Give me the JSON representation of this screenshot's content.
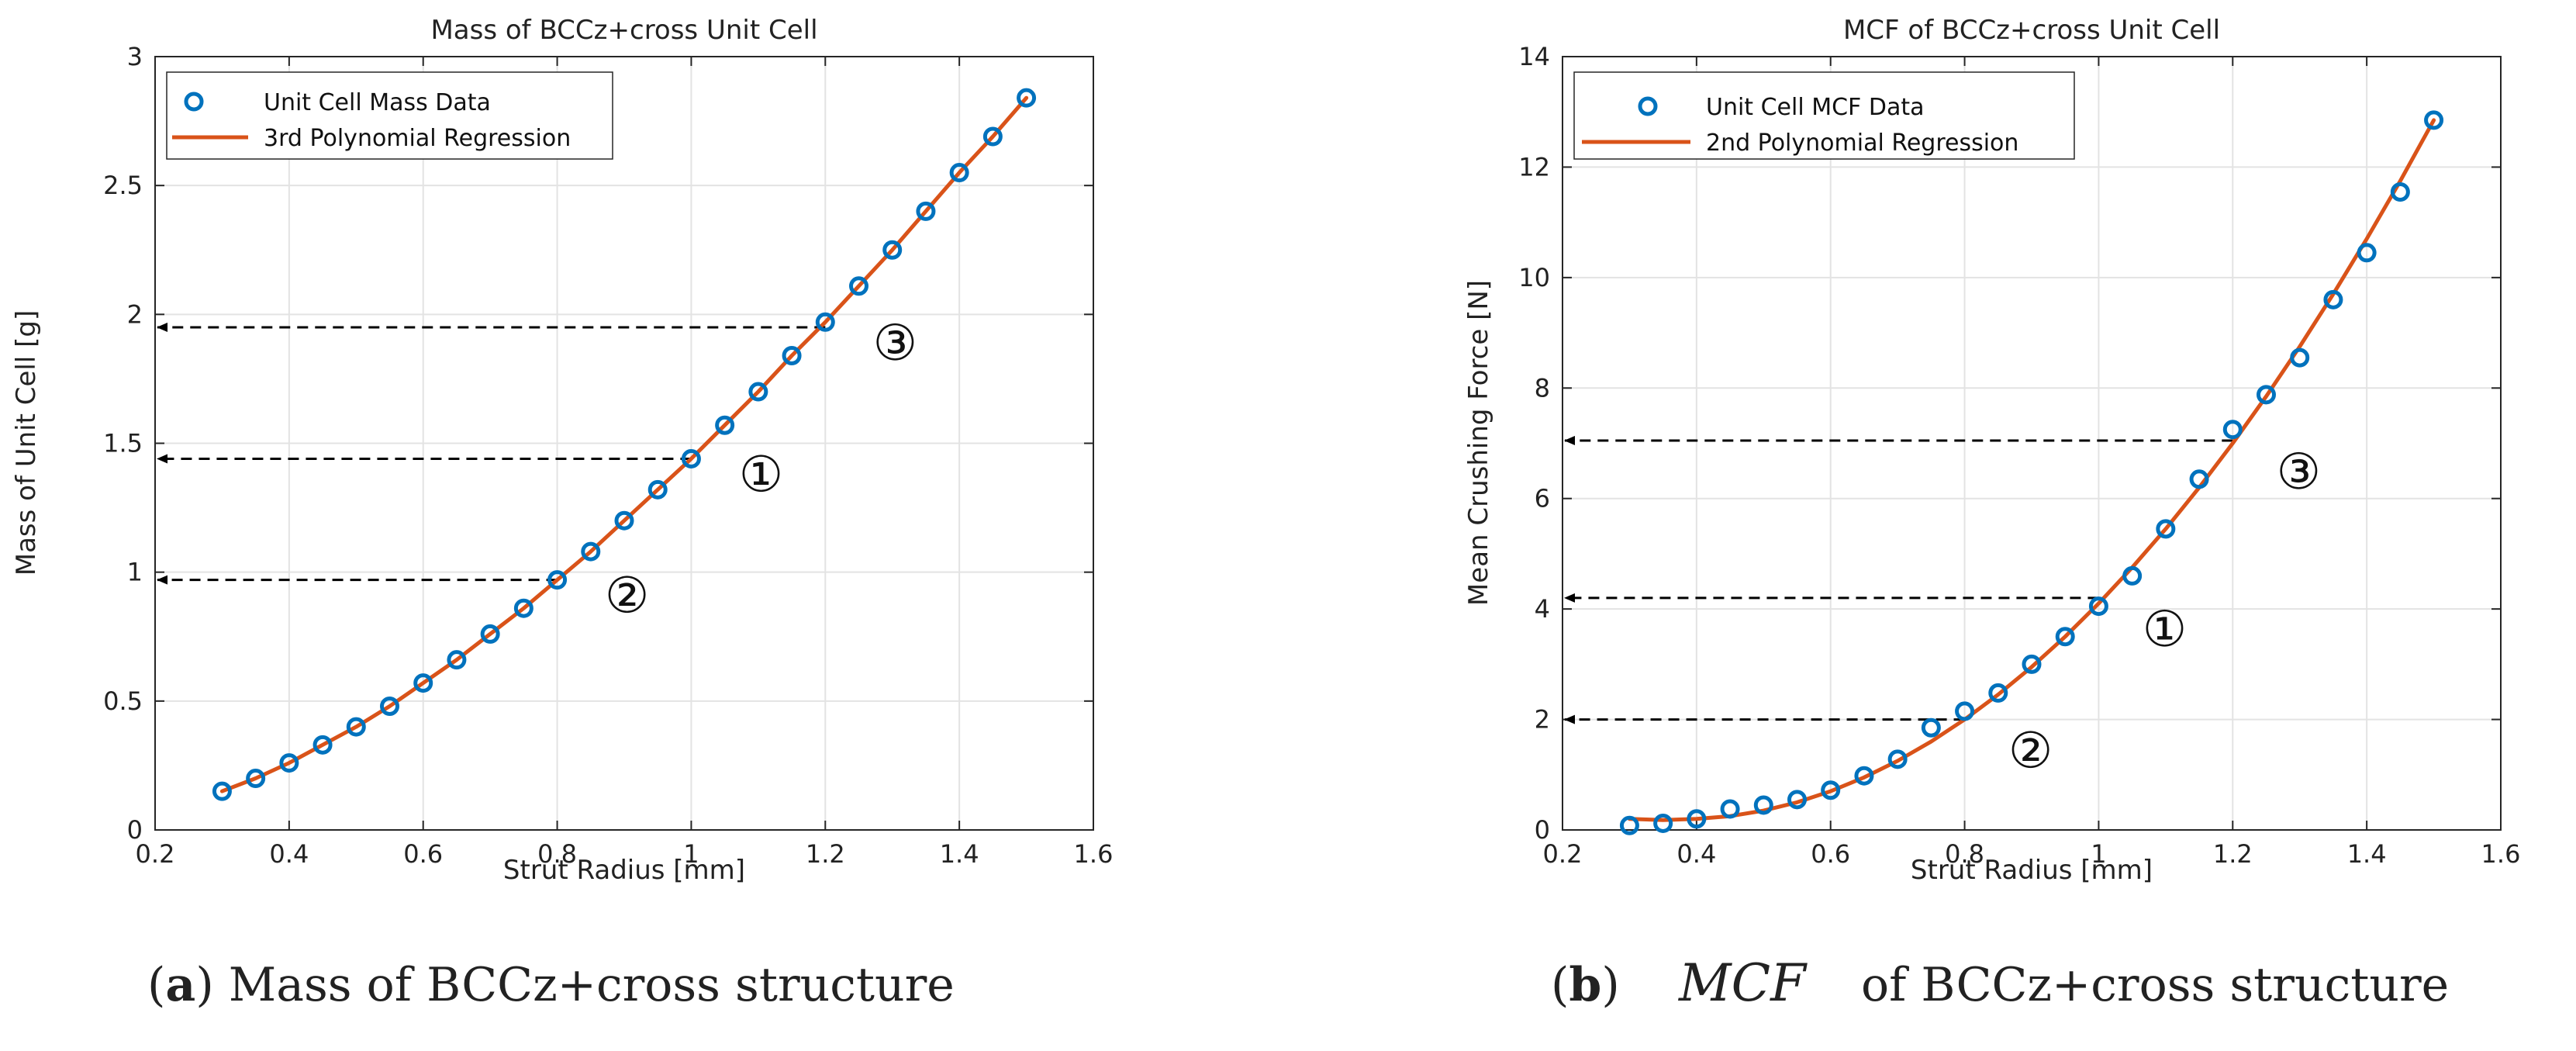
{
  "chart_data": [
    {
      "type": "scatter",
      "title": "Mass of BCCz+cross Unit Cell",
      "xlabel": "Strut Radius [mm]",
      "ylabel": "Mass of Unit Cell [g]",
      "xlim": [
        0.2,
        1.6
      ],
      "ylim": [
        0,
        3
      ],
      "xticks": [
        0.2,
        0.4,
        0.6,
        0.8,
        1,
        1.2,
        1.4,
        1.6
      ],
      "xtick_labels": [
        "0.2",
        "0.4",
        "0.6",
        "0.8",
        "1",
        "1.2",
        "1.4",
        "1.6"
      ],
      "yticks": [
        0,
        0.5,
        1,
        1.5,
        2,
        2.5,
        3
      ],
      "ytick_labels": [
        "0",
        "0.5",
        "1",
        "1.5",
        "2",
        "2.5",
        "3"
      ],
      "grid": true,
      "legend_position": "top-left",
      "series": [
        {
          "name": "Unit Cell Mass Data",
          "kind": "markers",
          "color": "#0072BD",
          "x": [
            0.3,
            0.35,
            0.4,
            0.45,
            0.5,
            0.55,
            0.6,
            0.65,
            0.7,
            0.75,
            0.8,
            0.85,
            0.9,
            0.95,
            1.0,
            1.05,
            1.1,
            1.15,
            1.2,
            1.25,
            1.3,
            1.35,
            1.4,
            1.45,
            1.5
          ],
          "y": [
            0.15,
            0.2,
            0.26,
            0.33,
            0.4,
            0.48,
            0.57,
            0.66,
            0.76,
            0.86,
            0.97,
            1.08,
            1.2,
            1.32,
            1.44,
            1.57,
            1.7,
            1.84,
            1.97,
            2.11,
            2.25,
            2.4,
            2.55,
            2.69,
            2.84
          ]
        },
        {
          "name": "3rd Polynomial Regression",
          "kind": "line",
          "color": "#D95319",
          "x": [
            0.3,
            0.35,
            0.4,
            0.45,
            0.5,
            0.55,
            0.6,
            0.65,
            0.7,
            0.75,
            0.8,
            0.85,
            0.9,
            0.95,
            1.0,
            1.05,
            1.1,
            1.15,
            1.2,
            1.25,
            1.3,
            1.35,
            1.4,
            1.45,
            1.5
          ],
          "y": [
            0.15,
            0.2,
            0.26,
            0.33,
            0.4,
            0.48,
            0.57,
            0.66,
            0.76,
            0.86,
            0.97,
            1.08,
            1.2,
            1.32,
            1.44,
            1.57,
            1.7,
            1.84,
            1.97,
            2.11,
            2.25,
            2.4,
            2.55,
            2.69,
            2.84
          ]
        }
      ],
      "annotations": [
        {
          "label": "①",
          "x": 1.0,
          "y": 1.44
        },
        {
          "label": "②",
          "x": 0.8,
          "y": 0.97
        },
        {
          "label": "③",
          "x": 1.2,
          "y": 1.95
        }
      ]
    },
    {
      "type": "scatter",
      "title": "MCF of BCCz+cross Unit Cell",
      "xlabel": "Strut Radius [mm]",
      "ylabel": "Mean Crushing Force [N]",
      "xlim": [
        0.2,
        1.6
      ],
      "ylim": [
        0,
        14
      ],
      "xticks": [
        0.2,
        0.4,
        0.6,
        0.8,
        1,
        1.2,
        1.4,
        1.6
      ],
      "xtick_labels": [
        "0.2",
        "0.4",
        "0.6",
        "0.8",
        "1",
        "1.2",
        "1.4",
        "1.6"
      ],
      "yticks": [
        0,
        2,
        4,
        6,
        8,
        10,
        12,
        14
      ],
      "ytick_labels": [
        "0",
        "2",
        "4",
        "6",
        "8",
        "10",
        "12",
        "14"
      ],
      "grid": true,
      "legend_position": "top-left",
      "series": [
        {
          "name": "Unit Cell MCF Data",
          "kind": "markers",
          "color": "#0072BD",
          "x": [
            0.3,
            0.35,
            0.4,
            0.45,
            0.5,
            0.55,
            0.6,
            0.65,
            0.7,
            0.75,
            0.8,
            0.85,
            0.9,
            0.95,
            1.0,
            1.05,
            1.1,
            1.15,
            1.2,
            1.25,
            1.3,
            1.35,
            1.4,
            1.45,
            1.5
          ],
          "y": [
            0.08,
            0.12,
            0.2,
            0.38,
            0.45,
            0.55,
            0.72,
            0.98,
            1.28,
            1.85,
            2.15,
            2.48,
            3.0,
            3.5,
            4.05,
            4.6,
            5.45,
            6.35,
            7.25,
            7.88,
            8.55,
            9.6,
            10.45,
            11.55,
            12.85
          ]
        },
        {
          "name": "2nd Polynomial Regression",
          "kind": "line",
          "color": "#D95319",
          "x": [
            0.3,
            0.35,
            0.4,
            0.45,
            0.5,
            0.55,
            0.6,
            0.65,
            0.7,
            0.75,
            0.8,
            0.85,
            0.9,
            0.95,
            1.0,
            1.05,
            1.1,
            1.15,
            1.2,
            1.25,
            1.3,
            1.35,
            1.4,
            1.45,
            1.5
          ],
          "y": [
            0.2,
            0.18,
            0.2,
            0.25,
            0.35,
            0.5,
            0.7,
            0.95,
            1.25,
            1.6,
            2.0,
            2.45,
            2.95,
            3.5,
            4.1,
            4.75,
            5.45,
            6.2,
            7.0,
            7.85,
            8.75,
            9.7,
            10.7,
            11.75,
            12.85
          ]
        }
      ],
      "annotations": [
        {
          "label": "①",
          "x": 1.0,
          "y": 4.2
        },
        {
          "label": "②",
          "x": 0.8,
          "y": 2.0
        },
        {
          "label": "③",
          "x": 1.2,
          "y": 7.05
        }
      ]
    }
  ],
  "captions": [
    {
      "prefix_open": "(",
      "letter": "a",
      "prefix_close": ")",
      "italic": "",
      "text": " Mass of BCCz+cross structure"
    },
    {
      "prefix_open": "(",
      "letter": "b",
      "prefix_close": ")",
      "italic": "MCF",
      "text": "of BCCz+cross structure"
    }
  ]
}
